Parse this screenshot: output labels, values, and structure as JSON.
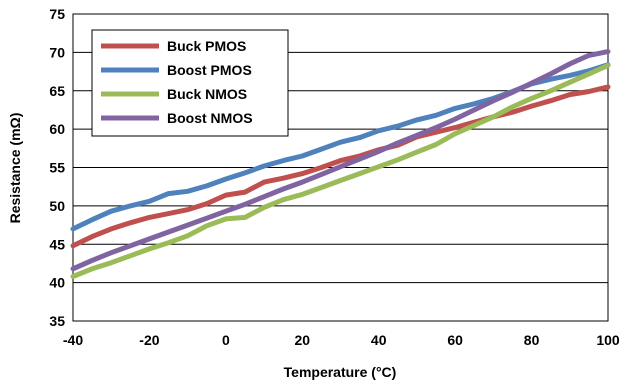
{
  "chart_data": {
    "type": "line",
    "title": "",
    "xlabel": "Temperature (°C)",
    "ylabel": "Resistance (mΩ)",
    "xlim": [
      -40,
      100
    ],
    "ylim": [
      35,
      75
    ],
    "xticks": [
      -40,
      -20,
      0,
      20,
      40,
      60,
      80,
      100
    ],
    "yticks": [
      35,
      40,
      45,
      50,
      55,
      60,
      65,
      70,
      75
    ],
    "x_tick_labels": [
      "-40",
      "-20",
      "0",
      "20",
      "40",
      "60",
      "80",
      "100"
    ],
    "y_tick_labels": [
      "35",
      "40",
      "45",
      "50",
      "55",
      "60",
      "65",
      "70",
      "75"
    ],
    "grid": true,
    "legend_position": "top-left",
    "series": [
      {
        "name": "Buck PMOS",
        "color": "#C0504D",
        "points": [
          [
            -40,
            44.8
          ],
          [
            -35,
            46
          ],
          [
            -30,
            47
          ],
          [
            -25,
            47.8
          ],
          [
            -20,
            48.5
          ],
          [
            -15,
            49
          ],
          [
            -10,
            49.5
          ],
          [
            -5,
            50.3
          ],
          [
            0,
            51.4
          ],
          [
            5,
            51.8
          ],
          [
            10,
            53.1
          ],
          [
            15,
            53.6
          ],
          [
            20,
            54.2
          ],
          [
            25,
            55
          ],
          [
            30,
            55.9
          ],
          [
            35,
            56.5
          ],
          [
            40,
            57.3
          ],
          [
            45,
            57.9
          ],
          [
            50,
            59
          ],
          [
            55,
            59.6
          ],
          [
            60,
            60.2
          ],
          [
            65,
            60.9
          ],
          [
            70,
            61.6
          ],
          [
            75,
            62.2
          ],
          [
            80,
            63
          ],
          [
            85,
            63.7
          ],
          [
            90,
            64.5
          ],
          [
            95,
            64.9
          ],
          [
            100,
            65.5
          ]
        ]
      },
      {
        "name": "Boost PMOS",
        "color": "#4F81BD",
        "points": [
          [
            -40,
            47
          ],
          [
            -35,
            48.2
          ],
          [
            -30,
            49.3
          ],
          [
            -25,
            50
          ],
          [
            -20,
            50.6
          ],
          [
            -15,
            51.6
          ],
          [
            -10,
            51.9
          ],
          [
            -5,
            52.6
          ],
          [
            0,
            53.5
          ],
          [
            5,
            54.3
          ],
          [
            10,
            55.2
          ],
          [
            15,
            55.9
          ],
          [
            20,
            56.5
          ],
          [
            25,
            57.4
          ],
          [
            30,
            58.3
          ],
          [
            35,
            58.9
          ],
          [
            40,
            59.8
          ],
          [
            45,
            60.4
          ],
          [
            50,
            61.2
          ],
          [
            55,
            61.8
          ],
          [
            60,
            62.7
          ],
          [
            65,
            63.3
          ],
          [
            70,
            64
          ],
          [
            75,
            64.9
          ],
          [
            80,
            65.9
          ],
          [
            85,
            66.5
          ],
          [
            90,
            67
          ],
          [
            95,
            67.6
          ],
          [
            100,
            68.4
          ]
        ]
      },
      {
        "name": "Buck NMOS",
        "color": "#9BBB59",
        "points": [
          [
            -40,
            40.8
          ],
          [
            -35,
            41.8
          ],
          [
            -30,
            42.6
          ],
          [
            -25,
            43.5
          ],
          [
            -20,
            44.4
          ],
          [
            -15,
            45.2
          ],
          [
            -10,
            46.1
          ],
          [
            -5,
            47.4
          ],
          [
            0,
            48.3
          ],
          [
            5,
            48.5
          ],
          [
            10,
            49.8
          ],
          [
            15,
            50.8
          ],
          [
            20,
            51.5
          ],
          [
            25,
            52.4
          ],
          [
            30,
            53.3
          ],
          [
            35,
            54.2
          ],
          [
            40,
            55.1
          ],
          [
            45,
            56
          ],
          [
            50,
            57
          ],
          [
            55,
            58
          ],
          [
            60,
            59.4
          ],
          [
            65,
            60.5
          ],
          [
            70,
            61.6
          ],
          [
            75,
            62.9
          ],
          [
            80,
            64
          ],
          [
            85,
            65
          ],
          [
            90,
            66.1
          ],
          [
            95,
            67.2
          ],
          [
            100,
            68.3
          ]
        ]
      },
      {
        "name": "Boost NMOS",
        "color": "#8064A2",
        "points": [
          [
            -40,
            41.8
          ],
          [
            -35,
            42.9
          ],
          [
            -30,
            43.9
          ],
          [
            -25,
            44.8
          ],
          [
            -20,
            45.7
          ],
          [
            -15,
            46.6
          ],
          [
            -10,
            47.5
          ],
          [
            -5,
            48.4
          ],
          [
            0,
            49.3
          ],
          [
            5,
            50.2
          ],
          [
            10,
            51.2
          ],
          [
            15,
            52.2
          ],
          [
            20,
            53.1
          ],
          [
            25,
            54.1
          ],
          [
            30,
            55.1
          ],
          [
            35,
            56.1
          ],
          [
            40,
            57.1
          ],
          [
            45,
            58.2
          ],
          [
            50,
            59.2
          ],
          [
            55,
            60.2
          ],
          [
            60,
            61.3
          ],
          [
            65,
            62.5
          ],
          [
            70,
            63.7
          ],
          [
            75,
            64.8
          ],
          [
            80,
            66
          ],
          [
            85,
            67.2
          ],
          [
            90,
            68.5
          ],
          [
            95,
            69.6
          ],
          [
            100,
            70.1
          ]
        ]
      }
    ]
  }
}
